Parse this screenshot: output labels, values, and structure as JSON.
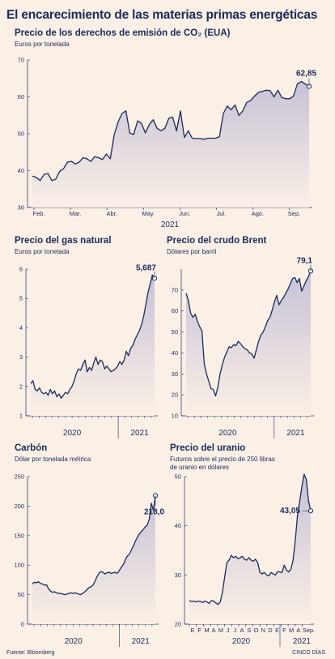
{
  "title": "El encarecimiento de las materias primas energéticas",
  "source": "Fuente: Bloomberg",
  "credit": "CINCO DÍAS",
  "colors": {
    "line": "#1b2a5a",
    "fillTop": "#c9c4d6",
    "fillBottom": "#fbf0e6",
    "bg": "#fbf0e6",
    "axis": "#1b2a5a"
  },
  "chart_data": [
    {
      "id": "eua",
      "type": "area",
      "title": "Precio de los derechos de emisión de CO₂ (EUA)",
      "subtitle": "Euros por tonelada",
      "year_label": "2021",
      "xlabels": [
        "Feb.",
        "Mar.",
        "Abr.",
        "May.",
        "Jun.",
        "Jul.",
        "Ago.",
        "Sep."
      ],
      "yticks": [
        30,
        40,
        50,
        60,
        70
      ],
      "ylim": [
        30,
        70
      ],
      "last_value": "62,85",
      "values": [
        38.5,
        38.2,
        37.3,
        39.0,
        39.2,
        37.3,
        37.7,
        39.8,
        40.5,
        42.3,
        42.5,
        41.8,
        42.3,
        43.5,
        43.2,
        42.5,
        43.8,
        43.5,
        43.0,
        44.5,
        43.2,
        49.8,
        53.2,
        55.5,
        56.2,
        50.2,
        49.8,
        53.5,
        52.8,
        50.2,
        52.5,
        53.8,
        51.5,
        50.8,
        51.5,
        54.2,
        54.5,
        50.8,
        56.2,
        49.0,
        50.8,
        48.8,
        48.7,
        48.7,
        48.5,
        48.8,
        48.8,
        48.8,
        49.2,
        55.5,
        57.5,
        56.5,
        57.8,
        55.0,
        56.2,
        58.5,
        59.0,
        60.2,
        61.2,
        61.5,
        61.8,
        61.7,
        60.0,
        61.8,
        59.8,
        59.5,
        59.5,
        60.2,
        63.5,
        64.2,
        63.5,
        62.85
      ]
    },
    {
      "id": "gas",
      "type": "area",
      "title": "Precio del gas natural",
      "subtitle": "Euros por tonelada",
      "xlabels": [
        "2020",
        "2021"
      ],
      "yticks": [
        1,
        2,
        3,
        4,
        5,
        6
      ],
      "ylim": [
        1,
        6
      ],
      "last_value": "5,687",
      "values": [
        2.1,
        2.2,
        1.9,
        1.85,
        1.95,
        1.8,
        1.75,
        1.8,
        1.7,
        1.9,
        1.75,
        1.85,
        1.65,
        1.75,
        1.6,
        1.7,
        1.8,
        1.75,
        1.9,
        2.0,
        2.2,
        2.45,
        2.6,
        2.55,
        2.75,
        2.9,
        2.5,
        2.65,
        2.55,
        2.8,
        3.0,
        2.75,
        2.9,
        2.85,
        2.6,
        2.7,
        2.6,
        2.5,
        2.55,
        2.6,
        2.7,
        2.85,
        2.75,
        2.9,
        3.2,
        3.05,
        3.3,
        3.4,
        3.6,
        3.75,
        3.9,
        4.1,
        4.4,
        4.8,
        5.2,
        5.5,
        5.8,
        5.687
      ]
    },
    {
      "id": "brent",
      "type": "area",
      "title": "Precio del crudo Brent",
      "subtitle": "Dólares por barril",
      "xlabels": [
        "2020",
        "2021"
      ],
      "yticks": [
        10,
        20,
        30,
        40,
        50,
        60,
        70
      ],
      "ylim": [
        10,
        80
      ],
      "last_value": "79,1",
      "values": [
        68.5,
        65.0,
        59.0,
        57.0,
        58.5,
        55.0,
        52.5,
        50.5,
        35.0,
        30.0,
        26.5,
        23.0,
        22.5,
        19.5,
        23.5,
        30.0,
        34.5,
        38.0,
        40.5,
        43.0,
        42.5,
        44.0,
        43.5,
        45.5,
        44.5,
        43.0,
        42.0,
        41.5,
        40.0,
        39.5,
        37.5,
        41.5,
        45.5,
        48.5,
        50.0,
        52.5,
        55.5,
        57.0,
        60.5,
        64.5,
        67.5,
        63.0,
        65.0,
        66.5,
        68.5,
        70.5,
        73.0,
        75.5,
        76.0,
        73.5,
        75.5,
        69.5,
        72.0,
        74.5,
        76.5,
        79.1
      ]
    },
    {
      "id": "carbon",
      "type": "area",
      "title": "Carbón",
      "subtitle": "Dólar por tonelada métrica",
      "xlabels": [
        "2020",
        "2021"
      ],
      "yticks": [
        0,
        50,
        100,
        150,
        200,
        250
      ],
      "ylim": [
        0,
        250
      ],
      "last_value": "218,0",
      "values": [
        68,
        71,
        70,
        72,
        69,
        68,
        66,
        67,
        60,
        56,
        54,
        55,
        53,
        52,
        52,
        51,
        50,
        51,
        52,
        53,
        52,
        53,
        52,
        51,
        50,
        52,
        55,
        58,
        62,
        63,
        66,
        72,
        80,
        86,
        89,
        88,
        85,
        87,
        88,
        86,
        87,
        88,
        86,
        90,
        96,
        100,
        108,
        115,
        118,
        125,
        132,
        140,
        147,
        152,
        157,
        160,
        165,
        168,
        178,
        205,
        193,
        218
      ]
    },
    {
      "id": "uranio",
      "type": "area",
      "title": "Precio del uranio",
      "subtitle": "Futuros sobre el precio de 250 libras",
      "subtitle2": "de uranio en dólares",
      "xlabels": [
        "E",
        "F",
        "M",
        "A",
        "M",
        "J",
        "J",
        "A",
        "S",
        "O",
        "N",
        "D",
        "E",
        "F",
        "M",
        "A",
        "M",
        "J",
        "J",
        "A",
        "S",
        "O",
        "N",
        "D",
        "E",
        "F",
        "M",
        "A",
        "Sep."
      ],
      "xlabel_show": [
        "E",
        "F",
        "M",
        "A",
        "M",
        "J",
        "J",
        "A",
        "S",
        "O",
        "N",
        "D",
        "E",
        "F",
        "M",
        "A",
        "Sep."
      ],
      "years": [
        "2020",
        "2021"
      ],
      "yticks": [
        20,
        30,
        40,
        50
      ],
      "ylim": [
        20,
        50
      ],
      "last_value": "43,05",
      "values": [
        24.8,
        24.6,
        24.7,
        24.5,
        24.7,
        24.6,
        24.4,
        24.7,
        24.5,
        24.2,
        24.8,
        24.7,
        24.3,
        24.0,
        24.5,
        26.5,
        29.5,
        32.5,
        33.0,
        34.0,
        33.5,
        33.8,
        33.3,
        33.5,
        33.8,
        33.2,
        33.0,
        33.5,
        33.0,
        32.8,
        33.2,
        32.5,
        30.5,
        30.2,
        30.5,
        30.0,
        29.8,
        30.5,
        30.2,
        30.0,
        30.7,
        30.6,
        30.5,
        32.0,
        31.0,
        30.6,
        31.2,
        33.0,
        37.0,
        42.0,
        45.0,
        48.0,
        50.5,
        49.5,
        45.0,
        43.05
      ]
    }
  ]
}
